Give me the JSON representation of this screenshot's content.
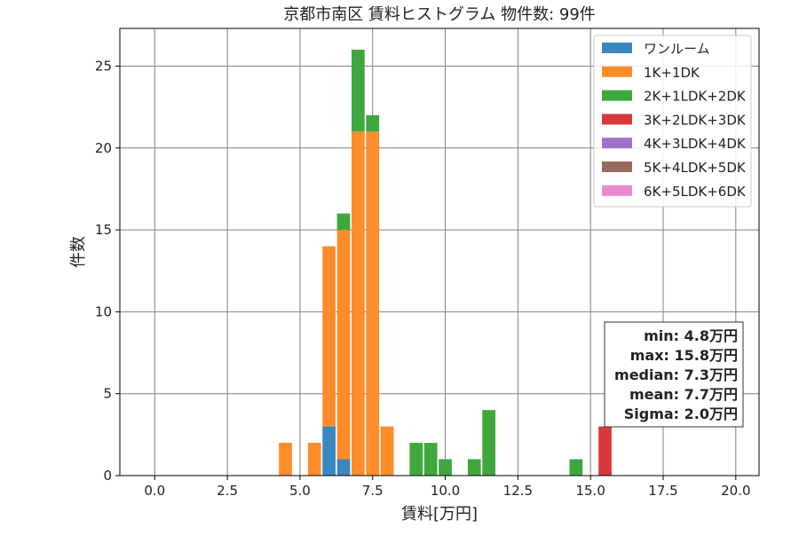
{
  "chart_data": {
    "type": "bar",
    "stacked": true,
    "title": "京都市南区 賃料ヒストグラム  物件数: 99件",
    "xlabel": "賃料[万円]",
    "ylabel": "件数",
    "xlim": [
      -1.2,
      20.8
    ],
    "ylim": [
      0,
      27.3
    ],
    "xticks": [
      0.0,
      2.5,
      5.0,
      7.5,
      10.0,
      12.5,
      15.0,
      17.5,
      20.0
    ],
    "xtick_labels": [
      "0.0",
      "2.5",
      "5.0",
      "7.5",
      "10.0",
      "12.5",
      "15.0",
      "17.5",
      "20.0"
    ],
    "yticks": [
      0,
      5,
      10,
      15,
      20,
      25
    ],
    "ytick_labels": [
      "0",
      "5",
      "10",
      "15",
      "20",
      "25"
    ],
    "grid": true,
    "legend_position": "top-right",
    "bin_width": 0.5,
    "x": [
      4.5,
      5.5,
      6.0,
      6.5,
      7.0,
      7.5,
      8.0,
      9.0,
      9.5,
      10.0,
      11.0,
      11.5,
      14.5,
      15.5
    ],
    "series": [
      {
        "name": "ワンルーム",
        "color": "#3a87c0",
        "values": [
          0,
          0,
          3,
          1,
          0,
          0,
          0,
          0,
          0,
          0,
          0,
          0,
          0,
          0
        ]
      },
      {
        "name": "1K+1DK",
        "color": "#ff8c2a",
        "values": [
          2,
          2,
          11,
          14,
          21,
          21,
          3,
          0,
          0,
          0,
          0,
          0,
          0,
          0
        ]
      },
      {
        "name": "2K+1LDK+2DK",
        "color": "#3ea83e",
        "values": [
          0,
          0,
          0,
          1,
          5,
          1,
          0,
          2,
          2,
          1,
          1,
          4,
          1,
          0
        ]
      },
      {
        "name": "3K+2LDK+3DK",
        "color": "#d83a3a",
        "values": [
          0,
          0,
          0,
          0,
          0,
          0,
          0,
          0,
          0,
          0,
          0,
          0,
          0,
          3
        ]
      },
      {
        "name": "4K+3LDK+4DK",
        "color": "#9f72c8",
        "values": [
          0,
          0,
          0,
          0,
          0,
          0,
          0,
          0,
          0,
          0,
          0,
          0,
          0,
          0
        ]
      },
      {
        "name": "5K+4LDK+5DK",
        "color": "#9a6a5e",
        "values": [
          0,
          0,
          0,
          0,
          0,
          0,
          0,
          0,
          0,
          0,
          0,
          0,
          0,
          0
        ]
      },
      {
        "name": "6K+5LDK+6DK",
        "color": "#e88ad0",
        "values": [
          0,
          0,
          0,
          0,
          0,
          0,
          0,
          0,
          0,
          0,
          0,
          0,
          0,
          0
        ]
      }
    ],
    "stats_box": [
      "min: 4.8万円",
      "max: 15.8万円",
      "median: 7.3万円",
      "mean: 7.7万円",
      "Sigma: 2.0万円"
    ]
  }
}
